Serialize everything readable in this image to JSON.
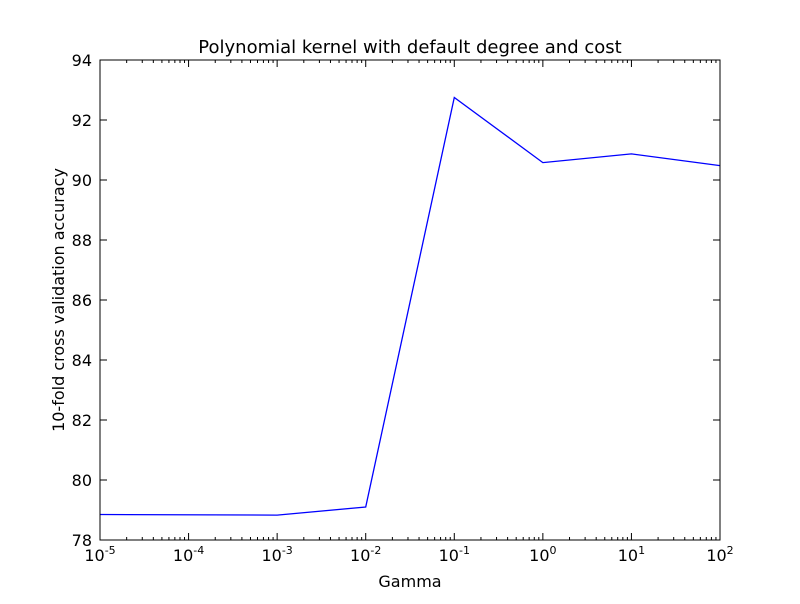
{
  "chart_data": {
    "type": "line",
    "title": "Polynomial kernel with default degree and cost",
    "xlabel": "Gamma",
    "ylabel": "10-fold cross validation accuracy",
    "x_scale": "log",
    "x_base": "10",
    "xlim": [
      1e-05,
      100
    ],
    "ylim": [
      78,
      94
    ],
    "grid": false,
    "line_color": "#0000ff",
    "x_ticks": [
      {
        "exp": -5,
        "base": "10",
        "power": "-5"
      },
      {
        "exp": -4,
        "base": "10",
        "power": "-4"
      },
      {
        "exp": -3,
        "base": "10",
        "power": "-3"
      },
      {
        "exp": -2,
        "base": "10",
        "power": "-2"
      },
      {
        "exp": -1,
        "base": "10",
        "power": "-1"
      },
      {
        "exp": 0,
        "base": "10",
        "power": "0"
      },
      {
        "exp": 1,
        "base": "10",
        "power": "1"
      },
      {
        "exp": 2,
        "base": "10",
        "power": "2"
      }
    ],
    "y_ticks": [
      78,
      80,
      82,
      84,
      86,
      88,
      90,
      92,
      94
    ],
    "series": [
      {
        "x": [
          1e-05,
          0.001,
          0.01,
          0.1,
          1,
          10,
          100
        ],
        "y": [
          78.85,
          78.83,
          79.1,
          92.75,
          90.58,
          90.87,
          90.48
        ]
      }
    ]
  }
}
